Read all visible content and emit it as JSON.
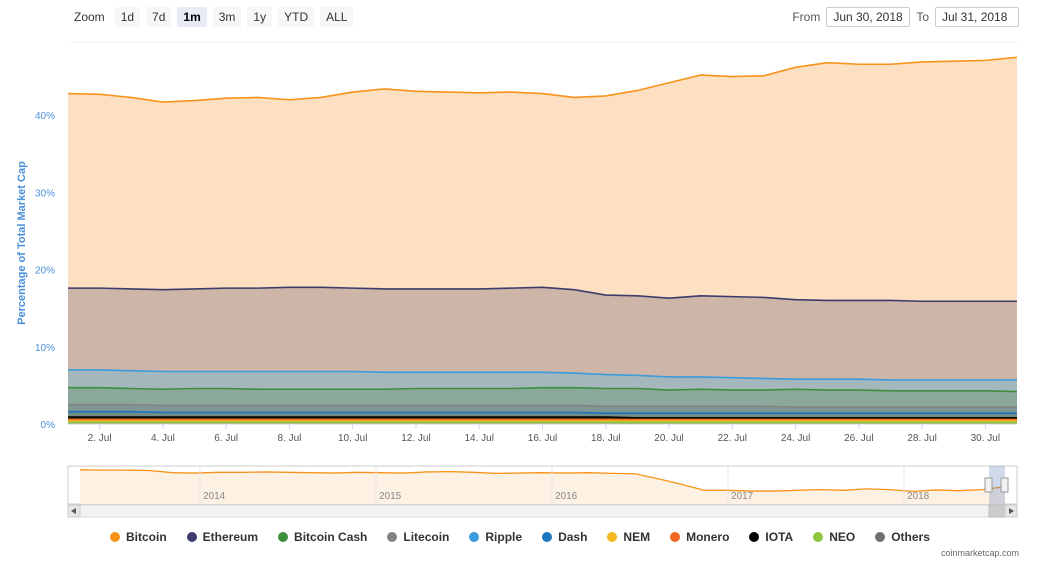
{
  "toolbar": {
    "zoom_label": "Zoom",
    "zoom_buttons": [
      "1d",
      "7d",
      "1m",
      "3m",
      "1y",
      "YTD",
      "ALL"
    ],
    "active_zoom": "1m",
    "from_label": "From",
    "from_value": "Jun 30, 2018",
    "to_label": "To",
    "to_value": "Jul 31, 2018"
  },
  "credit": "coinmarketcap.com",
  "chart_data": {
    "type": "area",
    "stacked": true,
    "ylabel": "Percentage of Total Market Cap",
    "ylim": [
      0,
      50
    ],
    "y_ticks": [
      0,
      10,
      20,
      30,
      40
    ],
    "y_tick_labels": [
      "0%",
      "10%",
      "20%",
      "30%",
      "40%"
    ],
    "x": [
      1,
      2,
      3,
      4,
      5,
      6,
      7,
      8,
      9,
      10,
      11,
      12,
      13,
      14,
      15,
      16,
      17,
      18,
      19,
      20,
      21,
      22,
      23,
      24,
      25,
      26,
      27,
      28,
      29,
      30,
      31
    ],
    "x_range": [
      1,
      31
    ],
    "x_tick_values": [
      2,
      4,
      6,
      8,
      10,
      12,
      14,
      16,
      18,
      20,
      22,
      24,
      26,
      28,
      30
    ],
    "x_tick_labels": [
      "2. Jul",
      "4. Jul",
      "6. Jul",
      "8. Jul",
      "10. Jul",
      "12. Jul",
      "14. Jul",
      "16. Jul",
      "18. Jul",
      "20. Jul",
      "22. Jul",
      "24. Jul",
      "26. Jul",
      "28. Jul",
      "30. Jul"
    ],
    "series": [
      {
        "name": "Bitcoin",
        "color": "#f7931a",
        "fill": "#fde0c2",
        "top": [
          42.8,
          42.7,
          42.3,
          41.7,
          41.9,
          42.2,
          42.3,
          42.0,
          42.3,
          43.0,
          43.4,
          43.1,
          43.0,
          42.9,
          43.0,
          42.8,
          42.3,
          42.5,
          43.2,
          44.2,
          45.2,
          45.0,
          45.1,
          46.2,
          46.8,
          46.6,
          46.6,
          46.9,
          47.0,
          47.1,
          47.5
        ]
      },
      {
        "name": "Ethereum",
        "color": "#3c3c6c",
        "fill": "#cdb6a8",
        "top": [
          17.6,
          17.6,
          17.5,
          17.4,
          17.5,
          17.6,
          17.6,
          17.7,
          17.7,
          17.6,
          17.5,
          17.5,
          17.5,
          17.5,
          17.6,
          17.7,
          17.4,
          16.7,
          16.6,
          16.3,
          16.6,
          16.5,
          16.4,
          16.1,
          16.0,
          16.0,
          16.0,
          15.9,
          15.9,
          15.9,
          15.9
        ]
      },
      {
        "name": "Bitcoin Cash",
        "color": "#3d8f3d",
        "fill": "#8aa99a",
        "top": [
          4.7,
          4.7,
          4.6,
          4.5,
          4.6,
          4.6,
          4.5,
          4.5,
          4.5,
          4.5,
          4.5,
          4.6,
          4.6,
          4.6,
          4.6,
          4.7,
          4.7,
          4.6,
          4.6,
          4.4,
          4.5,
          4.4,
          4.4,
          4.5,
          4.4,
          4.4,
          4.3,
          4.3,
          4.3,
          4.3,
          4.2
        ]
      },
      {
        "name": "Litecoin",
        "color": "#838383",
        "fill": "#7f9792",
        "top": [
          2.5,
          2.5,
          2.5,
          2.4,
          2.4,
          2.4,
          2.4,
          2.4,
          2.4,
          2.4,
          2.4,
          2.4,
          2.4,
          2.4,
          2.4,
          2.4,
          2.4,
          2.3,
          2.3,
          2.3,
          2.3,
          2.3,
          2.3,
          2.2,
          2.2,
          2.2,
          2.2,
          2.2,
          2.2,
          2.2,
          2.2
        ]
      },
      {
        "name": "Ripple",
        "color": "#3b9bdc",
        "fill": "#a4b7bd",
        "top": [
          7.0,
          7.0,
          6.9,
          6.8,
          6.8,
          6.8,
          6.8,
          6.8,
          6.8,
          6.8,
          6.7,
          6.7,
          6.7,
          6.7,
          6.7,
          6.7,
          6.6,
          6.4,
          6.3,
          6.1,
          6.1,
          6.0,
          5.9,
          5.8,
          5.8,
          5.8,
          5.7,
          5.7,
          5.7,
          5.7,
          5.7
        ]
      },
      {
        "name": "Dash",
        "color": "#1c75bc",
        "fill": "#6f8e86",
        "top": [
          1.6,
          1.6,
          1.6,
          1.5,
          1.5,
          1.5,
          1.5,
          1.5,
          1.5,
          1.5,
          1.5,
          1.5,
          1.5,
          1.5,
          1.5,
          1.5,
          1.5,
          1.4,
          1.4,
          1.4,
          1.4,
          1.4,
          1.4,
          1.4,
          1.4,
          1.4,
          1.4,
          1.4,
          1.4,
          1.4,
          1.4
        ]
      },
      {
        "name": "NEM",
        "color": "#f4b920",
        "fill": "#8a8a30",
        "top": [
          0.4,
          0.4,
          0.4,
          0.4,
          0.4,
          0.4,
          0.4,
          0.4,
          0.4,
          0.4,
          0.4,
          0.4,
          0.4,
          0.4,
          0.4,
          0.4,
          0.4,
          0.4,
          0.4,
          0.4,
          0.4,
          0.4,
          0.4,
          0.4,
          0.4,
          0.4,
          0.4,
          0.4,
          0.4,
          0.4,
          0.4
        ]
      },
      {
        "name": "Monero",
        "color": "#f26822",
        "fill": "#7a7a28",
        "top": [
          0.6,
          0.6,
          0.6,
          0.6,
          0.6,
          0.6,
          0.6,
          0.6,
          0.6,
          0.6,
          0.6,
          0.6,
          0.6,
          0.6,
          0.6,
          0.6,
          0.6,
          0.6,
          0.6,
          0.6,
          0.6,
          0.6,
          0.6,
          0.6,
          0.6,
          0.6,
          0.6,
          0.6,
          0.6,
          0.6,
          0.6
        ]
      },
      {
        "name": "IOTA",
        "color": "#000000",
        "fill": "#303010",
        "top": [
          0.9,
          0.9,
          0.9,
          0.9,
          0.9,
          0.9,
          0.9,
          0.9,
          0.9,
          0.9,
          0.9,
          0.9,
          0.9,
          0.9,
          0.9,
          0.9,
          0.9,
          0.9,
          0.8,
          0.8,
          0.8,
          0.8,
          0.8,
          0.8,
          0.8,
          0.8,
          0.8,
          0.8,
          0.8,
          0.8,
          0.8
        ]
      },
      {
        "name": "NEO",
        "color": "#8dc63f",
        "fill": "#6a7a20",
        "top": [
          0.2,
          0.2,
          0.2,
          0.2,
          0.2,
          0.2,
          0.2,
          0.2,
          0.2,
          0.2,
          0.2,
          0.2,
          0.2,
          0.2,
          0.2,
          0.2,
          0.2,
          0.2,
          0.2,
          0.2,
          0.2,
          0.2,
          0.2,
          0.2,
          0.2,
          0.2,
          0.2,
          0.2,
          0.2,
          0.2,
          0.2
        ]
      },
      {
        "name": "Others",
        "color": "#707070"
      }
    ],
    "legend_placement": "bottom",
    "navigator": {
      "x_tick_labels": [
        "2014",
        "2015",
        "2016",
        "2017",
        "2018"
      ],
      "values": [
        95,
        94,
        94,
        93,
        87,
        86,
        88,
        88,
        89,
        88,
        87,
        86,
        88,
        87,
        86,
        89,
        90,
        88,
        85,
        86,
        87,
        86,
        87,
        85,
        84,
        70,
        55,
        38,
        38,
        36,
        36,
        38,
        40,
        38,
        42,
        40,
        35,
        39,
        37,
        40,
        48
      ]
    }
  }
}
